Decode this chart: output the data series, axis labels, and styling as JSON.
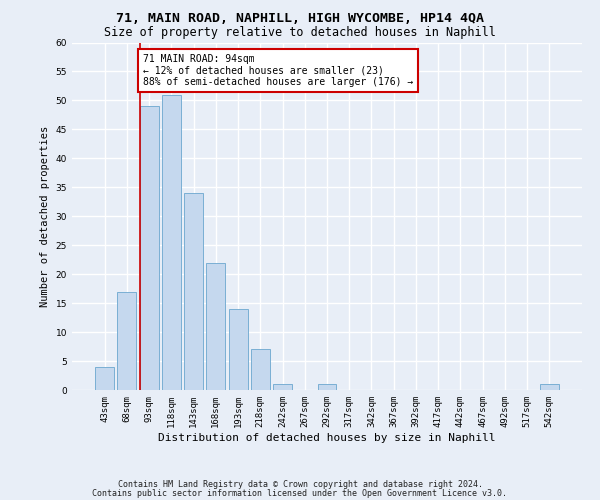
{
  "title1": "71, MAIN ROAD, NAPHILL, HIGH WYCOMBE, HP14 4QA",
  "title2": "Size of property relative to detached houses in Naphill",
  "xlabel": "Distribution of detached houses by size in Naphill",
  "ylabel": "Number of detached properties",
  "bar_labels": [
    "43sqm",
    "68sqm",
    "93sqm",
    "118sqm",
    "143sqm",
    "168sqm",
    "193sqm",
    "218sqm",
    "242sqm",
    "267sqm",
    "292sqm",
    "317sqm",
    "342sqm",
    "367sqm",
    "392sqm",
    "417sqm",
    "442sqm",
    "467sqm",
    "492sqm",
    "517sqm",
    "542sqm"
  ],
  "bar_values": [
    4,
    17,
    49,
    51,
    34,
    22,
    14,
    7,
    1,
    0,
    1,
    0,
    0,
    0,
    0,
    0,
    0,
    0,
    0,
    0,
    1
  ],
  "bar_color": "#c5d8ee",
  "bar_edge_color": "#7aafd4",
  "subject_line_color": "#cc0000",
  "annotation_text": "71 MAIN ROAD: 94sqm\n← 12% of detached houses are smaller (23)\n88% of semi-detached houses are larger (176) →",
  "annotation_box_color": "#ffffff",
  "annotation_box_edge": "#cc0000",
  "ylim": [
    0,
    60
  ],
  "yticks": [
    0,
    5,
    10,
    15,
    20,
    25,
    30,
    35,
    40,
    45,
    50,
    55,
    60
  ],
  "footer1": "Contains HM Land Registry data © Crown copyright and database right 2024.",
  "footer2": "Contains public sector information licensed under the Open Government Licence v3.0.",
  "bg_color": "#e8eef7",
  "grid_color": "#ffffff",
  "title1_fontsize": 9.5,
  "title2_fontsize": 8.5,
  "tick_fontsize": 6.5,
  "ylabel_fontsize": 7.5,
  "xlabel_fontsize": 8,
  "annot_fontsize": 7,
  "footer_fontsize": 6
}
